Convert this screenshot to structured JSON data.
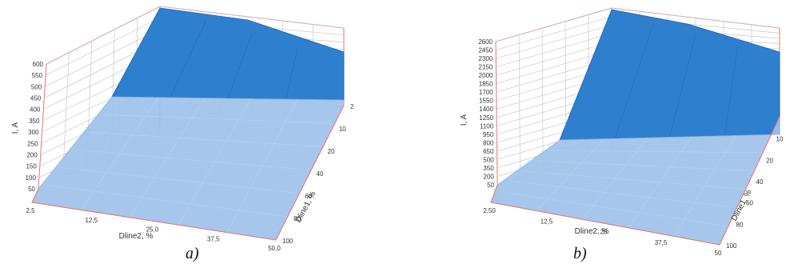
{
  "panel_labels": [
    "a)",
    "b)"
  ],
  "colors": {
    "frame": "#e8736e",
    "grid": "#c8c8c8",
    "surface_light": "#9fc3ea",
    "surface_dark": "#2f7fcf",
    "surface_edge": "#1e63ad"
  },
  "chart_data": [
    {
      "type": "surface",
      "zlabel": "I, A",
      "xlabel": "Dline2, %",
      "ylabel": "Dline1, %",
      "z_ticks": [
        "50",
        "100",
        "150",
        "200",
        "250",
        "300",
        "350",
        "400",
        "450",
        "500",
        "550",
        "600"
      ],
      "x_ticks": [
        "2,5",
        "12,5",
        "25,0",
        "37,5",
        "50,0"
      ],
      "y_ticks": [
        "2",
        "10",
        "20",
        "40",
        "60",
        "80",
        "100"
      ],
      "zlim": [
        50,
        600
      ],
      "grid": true
    },
    {
      "type": "surface",
      "zlabel": "I, A",
      "xlabel": "Dline2, %",
      "ylabel": "Dline1, %",
      "z_ticks": [
        "50",
        "200",
        "350",
        "500",
        "650",
        "800",
        "950",
        "1100",
        "1250",
        "1400",
        "1550",
        "1700",
        "1850",
        "2000",
        "2150",
        "2300",
        "2450",
        "2600"
      ],
      "x_ticks": [
        "2,50",
        "12,5",
        "25",
        "37,5",
        "50"
      ],
      "y_ticks": [
        "2",
        "10",
        "20",
        "40",
        "60",
        "80",
        "100"
      ],
      "zlim": [
        50,
        2600
      ],
      "grid": true
    }
  ]
}
